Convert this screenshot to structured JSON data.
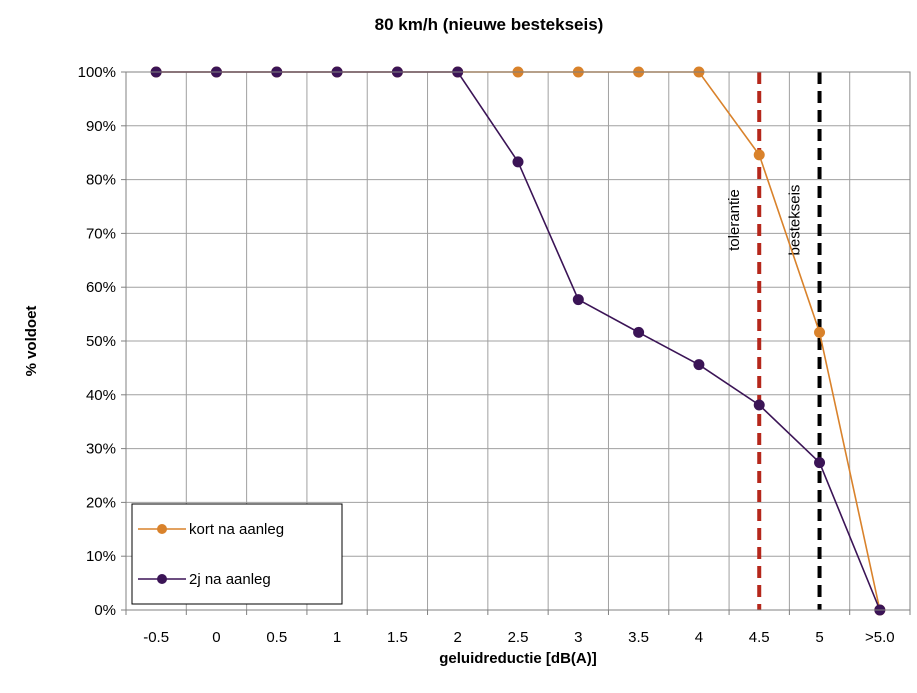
{
  "chart_data": {
    "type": "line",
    "title": "80 km/h (nieuwe bestekseis)",
    "xlabel": "geluidreductie [dB(A)]",
    "ylabel": "% voldoet",
    "categories": [
      "-0.5",
      "0",
      "0.5",
      "1",
      "1.5",
      "2",
      "2.5",
      "3",
      "3.5",
      "4",
      "4.5",
      "5",
      ">5.0"
    ],
    "y_ticks": [
      "0%",
      "10%",
      "20%",
      "30%",
      "40%",
      "50%",
      "60%",
      "70%",
      "80%",
      "90%",
      "100%"
    ],
    "ylim": [
      0,
      100
    ],
    "grid": true,
    "legend_position": "bottom-left",
    "series": [
      {
        "name": "kort na aanleg",
        "color": "#d9822b",
        "values": [
          100,
          100,
          100,
          100,
          100,
          100,
          100,
          100,
          100,
          100,
          84.6,
          51.6,
          0
        ]
      },
      {
        "name": "2j na aanleg",
        "color": "#3b1456",
        "values": [
          100,
          100,
          100,
          100,
          100,
          100,
          83.3,
          57.7,
          51.6,
          45.6,
          38.1,
          27.4,
          0
        ]
      }
    ],
    "reference_lines": [
      {
        "label": "tolerantie",
        "x": "4.5",
        "color": "#b5271b"
      },
      {
        "label": "bestekseis",
        "x": "5",
        "color": "#000000"
      }
    ]
  }
}
